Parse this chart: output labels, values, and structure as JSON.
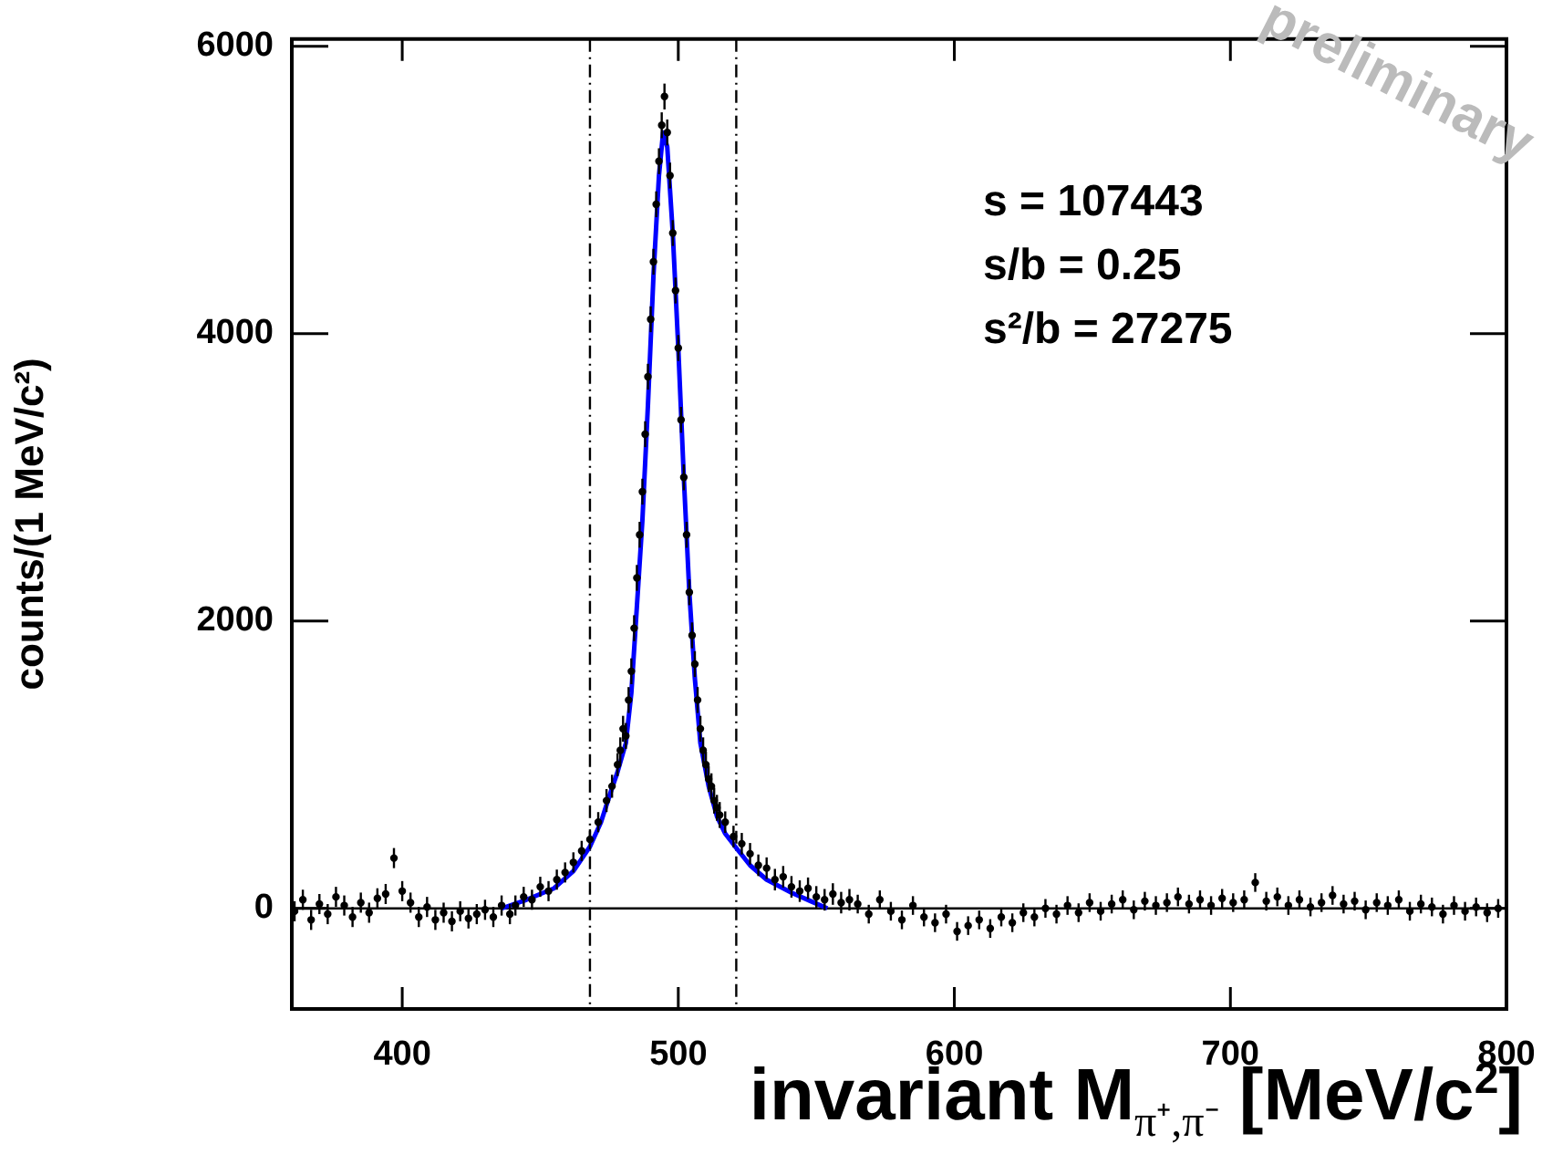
{
  "chart_data": {
    "type": "scatter",
    "xlabel": "invariant M$_{π⁺,π⁻}$ [MeV/c$^{2}$]",
    "ylabel": "counts/(1 MeV/c²)",
    "xlim": [
      360,
      800
    ],
    "xticks": [
      400,
      500,
      600,
      700,
      800
    ],
    "ylim": [
      -700,
      6050
    ],
    "yticks": [
      0,
      2000,
      4000,
      6000
    ],
    "grid": false,
    "legend": false,
    "series": [
      {
        "type": "scatter",
        "color": "#000000",
        "marker": "circle",
        "x": [
          361,
          364,
          367,
          370,
          373,
          376,
          379,
          382,
          385,
          388,
          391,
          394,
          397,
          400,
          403,
          406,
          409,
          412,
          415,
          418,
          421,
          424,
          427,
          430,
          433,
          436,
          439,
          441,
          444,
          447,
          450,
          453,
          456,
          459,
          462,
          465,
          468,
          471,
          474,
          476,
          478,
          479,
          480,
          481,
          482,
          483,
          484,
          485,
          486,
          487,
          488,
          489,
          490,
          491,
          492,
          493,
          494,
          495,
          496,
          497,
          498,
          499,
          500,
          501,
          502,
          503,
          504,
          505,
          506,
          507,
          508,
          509,
          510,
          511,
          512,
          513,
          514,
          515,
          517,
          520,
          523,
          526,
          529,
          532,
          535,
          538,
          541,
          544,
          547,
          550,
          553,
          556,
          559,
          562,
          565,
          569,
          573,
          577,
          581,
          585,
          589,
          593,
          597,
          601,
          605,
          609,
          613,
          617,
          621,
          625,
          629,
          633,
          637,
          641,
          645,
          649,
          653,
          657,
          661,
          665,
          669,
          673,
          677,
          681,
          685,
          689,
          693,
          697,
          701,
          705,
          709,
          713,
          717,
          721,
          725,
          729,
          733,
          737,
          741,
          745,
          749,
          753,
          757,
          761,
          765,
          769,
          773,
          777,
          781,
          785,
          789,
          793,
          797
        ],
        "values": [
          -20,
          60,
          -80,
          30,
          -40,
          80,
          20,
          -60,
          40,
          -30,
          70,
          100,
          350,
          120,
          40,
          -60,
          10,
          -80,
          -30,
          -90,
          -20,
          -70,
          -40,
          -10,
          -60,
          20,
          -40,
          20,
          80,
          60,
          150,
          120,
          200,
          250,
          320,
          400,
          480,
          600,
          750,
          850,
          1000,
          1100,
          1250,
          1200,
          1450,
          1650,
          1950,
          2300,
          2600,
          2900,
          3300,
          3700,
          4100,
          4500,
          4900,
          5200,
          5450,
          5650,
          5400,
          5100,
          4700,
          4300,
          3900,
          3400,
          3000,
          2600,
          2200,
          1900,
          1700,
          1450,
          1250,
          1100,
          1000,
          900,
          850,
          750,
          700,
          650,
          600,
          500,
          450,
          380,
          300,
          280,
          200,
          220,
          150,
          120,
          140,
          80,
          60,
          100,
          40,
          60,
          30,
          -40,
          60,
          -20,
          -80,
          20,
          -60,
          -100,
          -40,
          -160,
          -120,
          -80,
          -140,
          -60,
          -100,
          -30,
          -60,
          0,
          -40,
          20,
          -30,
          40,
          -20,
          30,
          60,
          -10,
          50,
          20,
          40,
          80,
          30,
          60,
          20,
          70,
          40,
          60,
          180,
          50,
          80,
          20,
          60,
          10,
          40,
          90,
          30,
          50,
          -10,
          40,
          20,
          60,
          -20,
          30,
          10,
          -40,
          20,
          -20,
          10,
          -30,
          0
        ],
        "errors": [
          70,
          70,
          70,
          70,
          70,
          70,
          70,
          70,
          70,
          70,
          70,
          70,
          70,
          70,
          70,
          70,
          70,
          70,
          70,
          70,
          70,
          70,
          70,
          70,
          70,
          70,
          70,
          70,
          70,
          70,
          70,
          70,
          70,
          70,
          70,
          70,
          70,
          70,
          80,
          80,
          80,
          90,
          90,
          90,
          90,
          90,
          90,
          90,
          90,
          90,
          90,
          90,
          90,
          90,
          90,
          90,
          90,
          90,
          90,
          90,
          90,
          90,
          90,
          90,
          90,
          90,
          90,
          90,
          90,
          90,
          90,
          90,
          90,
          90,
          90,
          90,
          90,
          90,
          75,
          75,
          75,
          75,
          75,
          75,
          75,
          75,
          75,
          75,
          75,
          75,
          75,
          75,
          75,
          75,
          65,
          65,
          65,
          65,
          65,
          65,
          65,
          65,
          65,
          65,
          65,
          65,
          65,
          65,
          65,
          65,
          65,
          65,
          65,
          65,
          65,
          65,
          65,
          65,
          65,
          65,
          65,
          65,
          65,
          65,
          65,
          65,
          65,
          65,
          65,
          65,
          65,
          65,
          65,
          65,
          65,
          65,
          65,
          65,
          65,
          65,
          65,
          65,
          65,
          65,
          65,
          65,
          65,
          65,
          65,
          65,
          65,
          65,
          65
        ]
      },
      {
        "type": "line",
        "color": "#0000ff",
        "marker": "none",
        "x": [
          436,
          445,
          455,
          462,
          468,
          472,
          475,
          478,
          481,
          483,
          485,
          487,
          489,
          491,
          493,
          494.5,
          496,
          498,
          500,
          502,
          504,
          506,
          508,
          511,
          514,
          517,
          521,
          526,
          532,
          541,
          548,
          554
        ],
        "values": [
          0,
          60,
          140,
          260,
          430,
          600,
          780,
          950,
          1150,
          1500,
          2100,
          2700,
          3500,
          4400,
          5100,
          5400,
          5300,
          4700,
          3900,
          3000,
          2200,
          1600,
          1150,
          850,
          640,
          520,
          420,
          300,
          200,
          110,
          50,
          0
        ]
      }
    ],
    "ref_lines": [
      {
        "axis": "x",
        "value": 468,
        "line_style": "dashed",
        "color": "#000000"
      },
      {
        "axis": "x",
        "value": 521,
        "line_style": "dashed",
        "color": "#000000"
      },
      {
        "axis": "y",
        "value": 0,
        "line_style": "solid",
        "color": "#000000"
      }
    ],
    "annotations": [
      "s = 107443",
      "s/b = 0.25",
      "s²/b = 27275",
      "preliminary"
    ]
  }
}
